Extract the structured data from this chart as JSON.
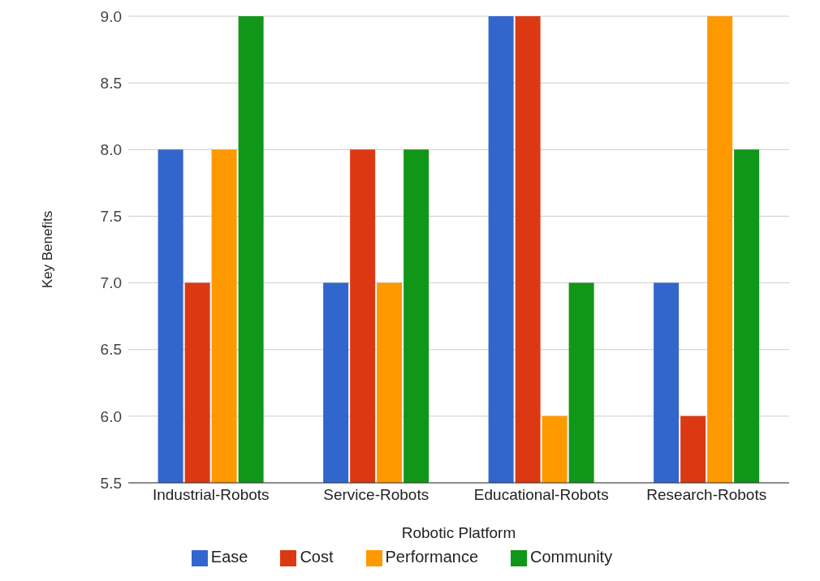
{
  "chart_data": {
    "type": "bar",
    "xlabel": "Robotic Platform",
    "ylabel": "Key Benefits",
    "categories": [
      "Industrial-Robots",
      "Service-Robots",
      "Educational-Robots",
      "Research-Robots"
    ],
    "series": [
      {
        "name": "Ease",
        "color": "#3366cc",
        "values": [
          8,
          7,
          9,
          7
        ]
      },
      {
        "name": "Cost",
        "color": "#dc3912",
        "values": [
          7,
          8,
          9,
          6
        ]
      },
      {
        "name": "Performance",
        "color": "#ff9900",
        "values": [
          8,
          7,
          6,
          9
        ]
      },
      {
        "name": "Community",
        "color": "#109618",
        "values": [
          9,
          8,
          7,
          8
        ]
      }
    ],
    "ylim": [
      5.5,
      9.0
    ],
    "yticks": [
      {
        "value": 5.5,
        "label": "5.5"
      },
      {
        "value": 6,
        "label": "6.0"
      },
      {
        "value": 6.5,
        "label": "6.5"
      },
      {
        "value": 7,
        "label": "7.0"
      },
      {
        "value": 7.5,
        "label": "7.5"
      },
      {
        "value": 8,
        "label": "8.0"
      },
      {
        "value": 8.5,
        "label": "8.5"
      },
      {
        "value": 9,
        "label": "9.0"
      }
    ],
    "grid": "y",
    "legend": "bottom"
  }
}
